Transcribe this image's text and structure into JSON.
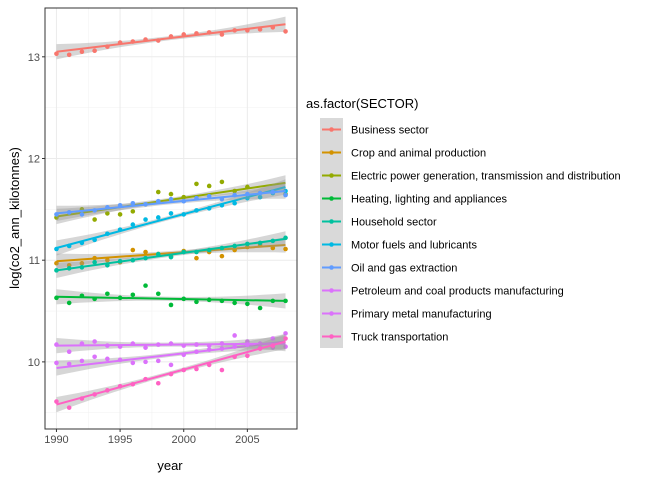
{
  "chart_data": {
    "type": "scatter",
    "title": "",
    "xlabel": "year",
    "ylabel": "log(co2_ann_kilotonnes)",
    "xlim": [
      1989.1,
      2008.9
    ],
    "ylim": [
      9.34,
      13.48
    ],
    "x_ticks": [
      1990,
      1995,
      2000,
      2005
    ],
    "y_ticks": [
      10,
      11,
      12,
      13
    ],
    "grid": true,
    "overlay": "linear fit with confidence band per series",
    "legend": {
      "title": "as.factor(SECTOR)",
      "position": "right"
    },
    "x": [
      1990,
      1991,
      1992,
      1993,
      1994,
      1995,
      1996,
      1997,
      1998,
      1999,
      2000,
      2001,
      2002,
      2003,
      2004,
      2005,
      2006,
      2007,
      2008
    ],
    "series": [
      {
        "name": "Business sector",
        "color": "#F8766D",
        "values": [
          13.03,
          13.02,
          13.05,
          13.06,
          13.1,
          13.14,
          13.15,
          13.17,
          13.16,
          13.2,
          13.22,
          13.23,
          13.24,
          13.22,
          13.26,
          13.26,
          13.27,
          13.29,
          13.25
        ],
        "fit": [
          13.05,
          13.32
        ]
      },
      {
        "name": "Crop and animal production",
        "color": "#D39200",
        "values": [
          10.97,
          10.95,
          10.97,
          11.02,
          11.0,
          10.98,
          11.1,
          11.08,
          11.06,
          11.04,
          11.09,
          11.02,
          11.08,
          11.04,
          11.1,
          11.13,
          11.15,
          11.12,
          11.11
        ],
        "fit": [
          10.99,
          11.15
        ]
      },
      {
        "name": "Electric power generation, transmission and distribution",
        "color": "#93AA00",
        "values": [
          11.42,
          11.47,
          11.5,
          11.4,
          11.46,
          11.45,
          11.48,
          11.55,
          11.67,
          11.65,
          11.62,
          11.75,
          11.73,
          11.77,
          11.68,
          11.72,
          11.66,
          11.67,
          11.65
        ],
        "fit": [
          11.43,
          11.76
        ]
      },
      {
        "name": "Heating, lighting and appliances",
        "color": "#00BA38",
        "values": [
          10.63,
          10.58,
          10.65,
          10.62,
          10.67,
          10.63,
          10.66,
          10.75,
          10.67,
          10.56,
          10.62,
          10.59,
          10.61,
          10.6,
          10.58,
          10.57,
          10.53,
          10.6,
          10.6
        ],
        "fit": [
          10.64,
          10.6
        ]
      },
      {
        "name": "Household sector",
        "color": "#00C19F",
        "values": [
          10.9,
          10.92,
          10.93,
          10.98,
          10.95,
          10.99,
          11.0,
          11.02,
          11.06,
          11.03,
          11.08,
          11.08,
          11.1,
          11.12,
          11.14,
          11.16,
          11.17,
          11.19,
          11.22
        ],
        "fit": [
          10.9,
          11.21
        ]
      },
      {
        "name": "Motor fuels and lubricants",
        "color": "#00B9E3",
        "values": [
          11.11,
          11.14,
          11.17,
          11.2,
          11.26,
          11.3,
          11.35,
          11.4,
          11.42,
          11.46,
          11.45,
          11.49,
          11.51,
          11.54,
          11.56,
          11.61,
          11.62,
          11.66,
          11.68
        ],
        "fit": [
          11.12,
          11.72
        ]
      },
      {
        "name": "Oil and gas extraction",
        "color": "#619CFF",
        "values": [
          11.45,
          11.47,
          11.45,
          11.49,
          11.52,
          11.54,
          11.56,
          11.55,
          11.58,
          11.6,
          11.58,
          11.61,
          11.63,
          11.6,
          11.64,
          11.65,
          11.66,
          11.67,
          11.64
        ],
        "fit": [
          11.46,
          11.68
        ]
      },
      {
        "name": "Petroleum and coal products manufacturing",
        "color": "#DB72FB",
        "values": [
          9.99,
          9.98,
          10.01,
          10.05,
          10.03,
          10.02,
          9.99,
          10.0,
          10.01,
          9.97,
          10.07,
          10.1,
          10.12,
          10.13,
          10.26,
          10.2,
          10.18,
          10.14,
          10.15
        ],
        "fit": [
          9.94,
          10.2
        ]
      },
      {
        "name": "Primary metal manufacturing",
        "color": "#DB72FB",
        "values": [
          10.17,
          10.1,
          10.18,
          10.2,
          10.16,
          10.15,
          10.18,
          10.14,
          10.17,
          10.18,
          10.16,
          10.17,
          10.16,
          10.18,
          10.15,
          10.17,
          10.14,
          10.23,
          10.28
        ],
        "fit": [
          10.16,
          10.18
        ]
      },
      {
        "name": "Truck transportation",
        "color": "#FF61C3",
        "values": [
          9.61,
          9.55,
          9.64,
          9.68,
          9.72,
          9.76,
          9.78,
          9.83,
          9.79,
          9.88,
          9.92,
          9.93,
          9.97,
          9.92,
          10.05,
          10.06,
          10.13,
          10.16,
          10.23
        ],
        "fit": [
          9.58,
          10.2
        ]
      }
    ]
  }
}
